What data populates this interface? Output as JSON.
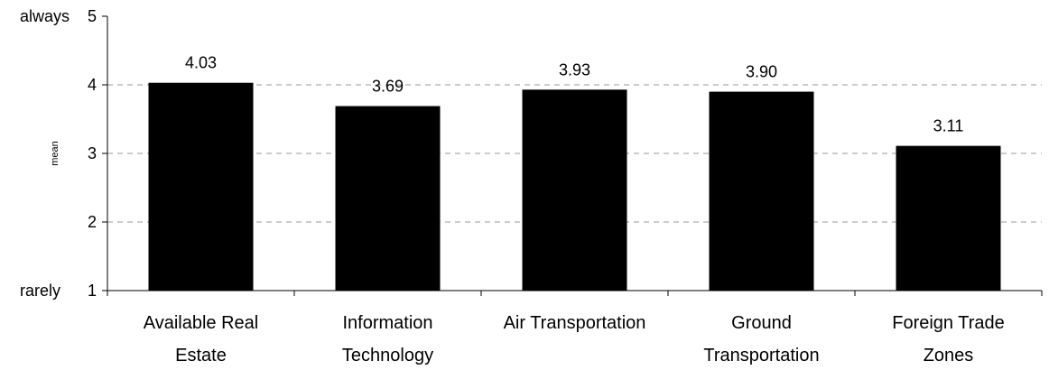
{
  "chart_data": {
    "type": "bar",
    "categories": [
      [
        "Available Real",
        "Estate"
      ],
      [
        "Information",
        "Technology"
      ],
      [
        "Air Transportation"
      ],
      [
        "Ground",
        "Transportation"
      ],
      [
        "Foreign Trade",
        "Zones"
      ]
    ],
    "values": [
      4.03,
      3.69,
      3.93,
      3.9,
      3.11
    ],
    "data_labels": [
      "4.03",
      "3.69",
      "3.93",
      "3.90",
      "3.11"
    ],
    "ylabel": "mean",
    "ylim": [
      1,
      5
    ],
    "yticks": [
      1,
      2,
      3,
      4,
      5
    ],
    "ytick_labels": [
      "1",
      "2",
      "3",
      "4",
      "5"
    ],
    "yanchor_labels": {
      "top": "always",
      "bottom": "rarely"
    },
    "grid": "horizontal-dashed",
    "bar_color": "#000000",
    "grid_color": "#999999"
  }
}
